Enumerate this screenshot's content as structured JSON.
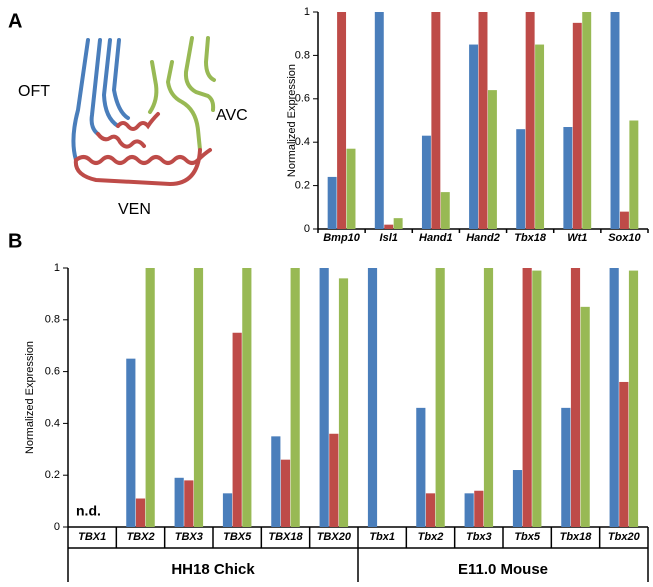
{
  "panels": [
    "A",
    "B"
  ],
  "diagram": {
    "labels": [
      "OFT",
      "AVC",
      "VEN"
    ]
  },
  "chart_data": [
    {
      "type": "bar",
      "ylabel": "Normalized Expression",
      "categories": [
        "Bmp10",
        "Isl1",
        "Hand1",
        "Hand2",
        "Tbx18",
        "Wt1",
        "Sox10"
      ],
      "series": [
        {
          "color": "#4a7ebb",
          "values": [
            0.24,
            1,
            0.43,
            0.85,
            0.46,
            0.47,
            1
          ]
        },
        {
          "color": "#be4b48",
          "values": [
            1,
            0.02,
            1,
            1,
            1,
            0.95,
            0.08
          ]
        },
        {
          "color": "#98b954",
          "values": [
            0.37,
            0.05,
            0.17,
            0.64,
            0.85,
            1,
            0.5
          ]
        }
      ],
      "ylim": [
        0,
        1
      ],
      "yticks": [
        0,
        0.2,
        0.4,
        0.6,
        0.8,
        1
      ]
    },
    {
      "type": "bar",
      "ylabel": "Normalized Expression",
      "categories": [
        "TBX1",
        "TBX2",
        "TBX3",
        "TBX5",
        "TBX18",
        "TBX20",
        "Tbx1",
        "Tbx2",
        "Tbx3",
        "Tbx5",
        "Tbx18",
        "Tbx20"
      ],
      "groups": [
        "HH18 Chick",
        "E11.0 Mouse"
      ],
      "annotation": "n.d.",
      "series": [
        {
          "color": "#4a7ebb",
          "values": [
            null,
            0.65,
            0.19,
            0.13,
            0.35,
            1,
            1,
            0.46,
            0.13,
            0.22,
            0.46,
            1
          ]
        },
        {
          "color": "#be4b48",
          "values": [
            null,
            0.11,
            0.18,
            0.75,
            0.26,
            0.36,
            0,
            0.13,
            0.14,
            1,
            1,
            0.56
          ]
        },
        {
          "color": "#98b954",
          "values": [
            null,
            1,
            1,
            1,
            1,
            0.96,
            0,
            1,
            1,
            0.99,
            0.85,
            0.99
          ]
        }
      ],
      "ylim": [
        0,
        1
      ],
      "yticks": [
        0,
        0.2,
        0.4,
        0.6,
        0.8,
        1
      ]
    }
  ]
}
